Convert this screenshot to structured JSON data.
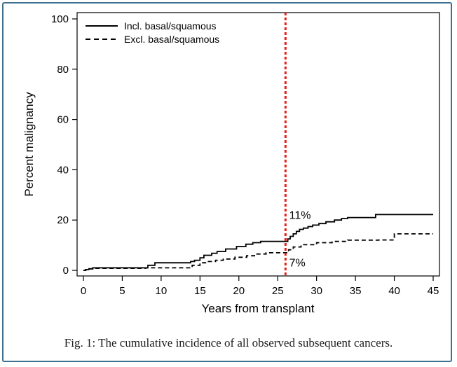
{
  "chart_data": {
    "type": "line",
    "ylabel": "Percent malignancy",
    "xlabel": "Years from transplant",
    "xlim": [
      0,
      45
    ],
    "ylim": [
      0,
      100
    ],
    "x_ticks": [
      "0",
      "5",
      "10",
      "15",
      "20",
      "25",
      "30",
      "35",
      "40",
      "45"
    ],
    "y_ticks": [
      "0",
      "20",
      "40",
      "60",
      "80",
      "100"
    ],
    "grid": false,
    "legend_position": "top-left",
    "series": [
      {
        "name": "Incl. basal/squamous",
        "style": "solid",
        "color": "#000000",
        "x": [
          0,
          0.3,
          0.7,
          1.2,
          3.3,
          7.5,
          8.3,
          9.2,
          13.3,
          13.8,
          14.3,
          15.0,
          15.5,
          16.5,
          17.2,
          18.3,
          19.7,
          20.9,
          21.8,
          22.8,
          23.5,
          25.9,
          26.3,
          26.6,
          27.0,
          27.4,
          27.8,
          28.3,
          28.9,
          29.5,
          30.3,
          31.2,
          32.3,
          33.2,
          34.0,
          37.3,
          37.6,
          45.0
        ],
        "y": [
          0,
          0.3,
          0.6,
          1.0,
          1.0,
          1.0,
          2.0,
          3.0,
          3.0,
          3.5,
          4.0,
          5.0,
          6.0,
          6.8,
          7.5,
          8.5,
          9.5,
          10.4,
          11.0,
          11.5,
          11.5,
          11.5,
          12.5,
          13.5,
          14.5,
          15.5,
          16.3,
          16.8,
          17.4,
          18.0,
          18.6,
          19.3,
          20.0,
          20.6,
          21.0,
          21.0,
          22.2,
          22.2
        ]
      },
      {
        "name": "Excl. basal/squamous",
        "style": "dashed",
        "color": "#000000",
        "x": [
          0,
          0.3,
          0.7,
          1.2,
          3.3,
          7.5,
          8.0,
          9.0,
          13.2,
          14.0,
          15.0,
          16.0,
          17.0,
          18.0,
          19.5,
          21.0,
          22.0,
          23.5,
          24.5,
          25.9,
          26.4,
          27.0,
          28.0,
          30.0,
          32.0,
          34.0,
          38.0,
          39.7,
          40.0,
          45.0
        ],
        "y": [
          0,
          0.3,
          0.6,
          0.8,
          0.8,
          0.8,
          1.0,
          1.0,
          1.0,
          2.0,
          3.0,
          3.5,
          4.0,
          4.5,
          5.2,
          5.8,
          6.5,
          7.0,
          7.0,
          7.0,
          8.2,
          9.3,
          10.2,
          11.0,
          11.5,
          12.0,
          12.1,
          12.1,
          14.5,
          14.5
        ]
      }
    ],
    "cutoff_line": {
      "x": 26,
      "color": "#e8201a",
      "style": "dotted"
    },
    "annotations": [
      {
        "text": "11%",
        "x": 26.3,
        "y": 20.5
      },
      {
        "text": "7%",
        "x": 26.3,
        "y": 1.5
      }
    ]
  },
  "caption": "Fig. 1: The cumulative incidence of all observed subsequent cancers."
}
